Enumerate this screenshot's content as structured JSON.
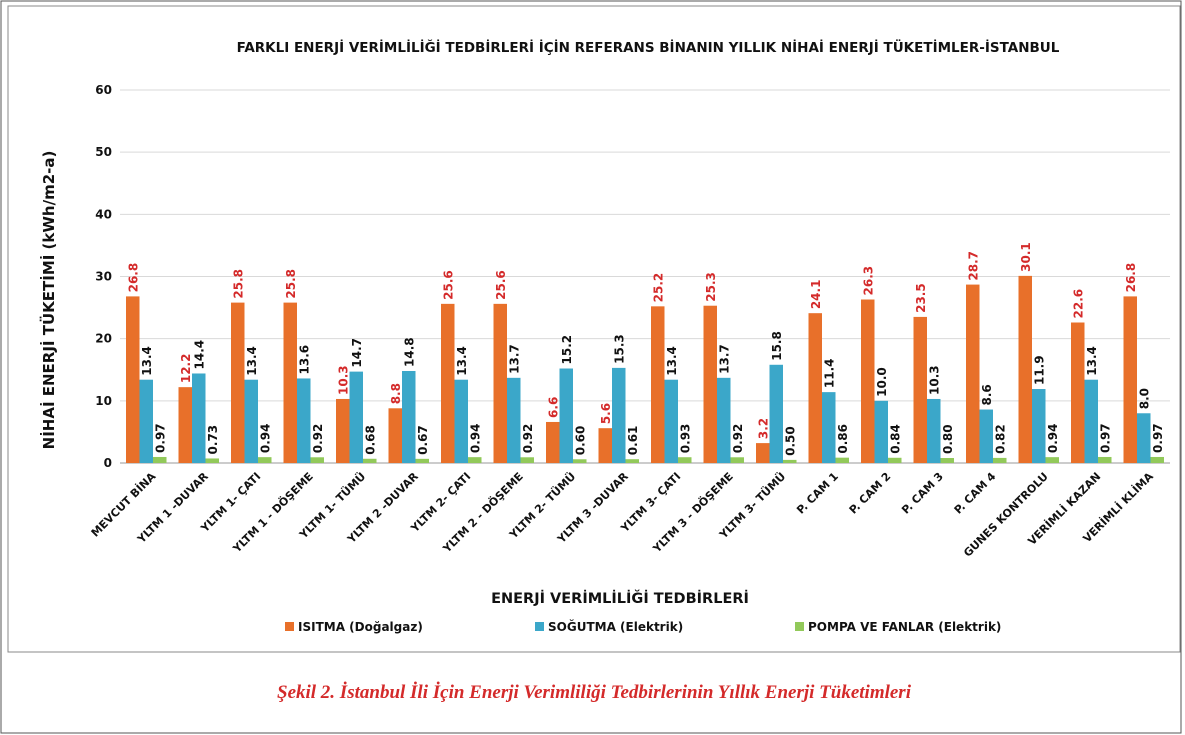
{
  "chart_data": {
    "type": "bar",
    "title": "FARKLI ENERJİ VERİMLİLİĞİ TEDBİRLERİ İÇİN REFERANS BİNANIN YILLIK  NİHAİ ENERJİ TÜKETİMLER-İSTANBUL",
    "x_label": "ENERJİ VERİMLİLİĞİ TEDBİRLERİ",
    "y_label": "NİHAİ ENERJİ TÜKETİMİ (kWh/m2-a)",
    "caption": "Şekil 2. İstanbul İli İçin Enerji Verimliliği Tedbirlerinin Yıllık Enerji Tüketimleri",
    "categories": [
      "MEVCUT BİNA",
      "YLTM 1 -DUVAR",
      "YLTM 1- ÇATI",
      "YLTM 1 - DÖŞEME",
      "YLTM 1- TÜMÜ",
      "YLTM 2 -DUVAR",
      "YLTM 2- ÇATI",
      "YLTM 2 - DÖŞEME",
      "YLTM 2- TÜMÜ",
      "YLTM 3 -DUVAR",
      "YLTM 3- ÇATI",
      "YLTM 3 - DÖŞEME",
      "YLTM 3- TÜMÜ",
      "P. CAM 1",
      "P. CAM 2",
      "P. CAM 3",
      "P. CAM 4",
      "GUNES KONTROLU",
      "VERİMLİ KAZAN",
      "VERİMLİ KLİMA"
    ],
    "series": [
      {
        "name": "ISITMA (Doğalgaz)",
        "color": "#e8702a",
        "label_color": "#d42a2a",
        "values": [
          26.8,
          12.2,
          25.8,
          25.8,
          10.3,
          8.8,
          25.6,
          25.6,
          6.6,
          5.6,
          25.2,
          25.3,
          3.2,
          24.1,
          26.3,
          23.5,
          28.7,
          30.1,
          22.6,
          26.8
        ],
        "value_labels": [
          "26.8",
          "12.2",
          "25.8",
          "25.8",
          "10.3",
          "8.8",
          "25.6",
          "25.6",
          "6.6",
          "5.6",
          "25.2",
          "25.3",
          "3.2",
          "24.1",
          "26.3",
          "23.5",
          "28.7",
          "30.1",
          "22.6",
          "26.8"
        ]
      },
      {
        "name": "SOĞUTMA (Elektrik)",
        "color": "#3ba7c9",
        "label_color": "#111111",
        "values": [
          13.4,
          14.4,
          13.4,
          13.6,
          14.7,
          14.8,
          13.4,
          13.7,
          15.2,
          15.3,
          13.4,
          13.7,
          15.8,
          11.4,
          10.0,
          10.3,
          8.6,
          11.9,
          13.4,
          8.0
        ],
        "value_labels": [
          "13.4",
          "14.4",
          "13.4",
          "13.6",
          "14.7",
          "14.8",
          "13.4",
          "13.7",
          "15.2",
          "15.3",
          "13.4",
          "13.7",
          "15.8",
          "11.4",
          "10.0",
          "10.3",
          "8.6",
          "11.9",
          "13.4",
          "8.0"
        ]
      },
      {
        "name": "POMPA VE FANLAR (Elektrik)",
        "color": "#92c95a",
        "label_color": "#111111",
        "values": [
          0.97,
          0.73,
          0.94,
          0.92,
          0.68,
          0.67,
          0.94,
          0.92,
          0.6,
          0.61,
          0.93,
          0.92,
          0.5,
          0.86,
          0.84,
          0.8,
          0.82,
          0.94,
          0.97,
          0.97
        ],
        "value_labels": [
          "0.97",
          "0.73",
          "0.94",
          "0.92",
          "0.68",
          "0.67",
          "0.94",
          "0.92",
          "0.60",
          "0.61",
          "0.93",
          "0.92",
          "0.50",
          "0.86",
          "0.84",
          "0.80",
          "0.82",
          "0.94",
          "0.97",
          "0.97"
        ]
      }
    ],
    "ylim": [
      0,
      60
    ],
    "yticks": [
      0,
      10,
      20,
      30,
      40,
      50,
      60
    ],
    "grid": true,
    "legend": "bottom"
  }
}
